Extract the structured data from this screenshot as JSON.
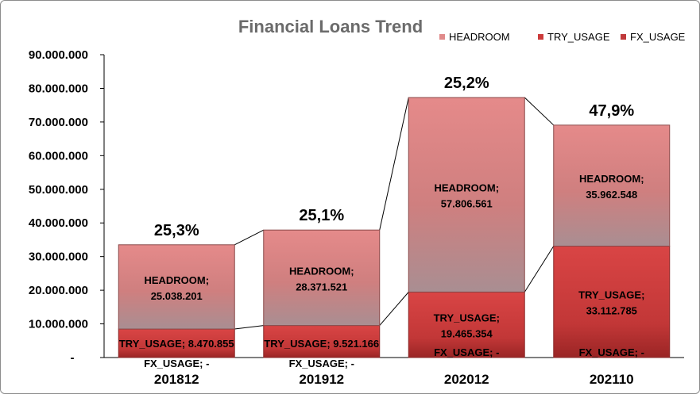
{
  "chart_data": {
    "type": "bar",
    "stacked": true,
    "title": "Financial Loans Trend",
    "categories": [
      "201812",
      "201912",
      "202012",
      "202110"
    ],
    "series": [
      {
        "name": "FX_USAGE",
        "values": [
          0,
          0,
          0,
          0
        ],
        "labels": [
          "FX_USAGE;  -",
          "FX_USAGE;  -",
          "FX_USAGE;  -",
          "FX_USAGE;  -"
        ],
        "color": "#c0393b"
      },
      {
        "name": "TRY_USAGE",
        "values": [
          8470855,
          9521166,
          19465354,
          33112785
        ],
        "labels": [
          "TRY_USAGE;  8.470.855",
          "TRY_USAGE;  9.521.166",
          "TRY_USAGE;\n19.465.354",
          "TRY_USAGE;\n33.112.785"
        ],
        "color": "#cc3b3b"
      },
      {
        "name": "HEADROOM",
        "values": [
          25038201,
          28371521,
          57806561,
          35962548
        ],
        "labels": [
          "HEADROOM;\n25.038.201",
          "HEADROOM;\n28.371.521",
          "HEADROOM;\n57.806.561",
          "HEADROOM;\n35.962.548"
        ],
        "color": "#d97b7b"
      }
    ],
    "percent_labels": [
      "25,3%",
      "25,1%",
      "25,2%",
      "47,9%"
    ],
    "yticks": [
      "-",
      "10.000.000",
      "20.000.000",
      "30.000.000",
      "40.000.000",
      "50.000.000",
      "60.000.000",
      "70.000.000",
      "80.000.000",
      "90.000.000"
    ],
    "ylim": [
      0,
      90000000
    ],
    "legend": {
      "position": "top-right",
      "entries": [
        "HEADROOM",
        "TRY_USAGE",
        "FX_USAGE"
      ]
    },
    "series_lines": true,
    "grid": false
  }
}
